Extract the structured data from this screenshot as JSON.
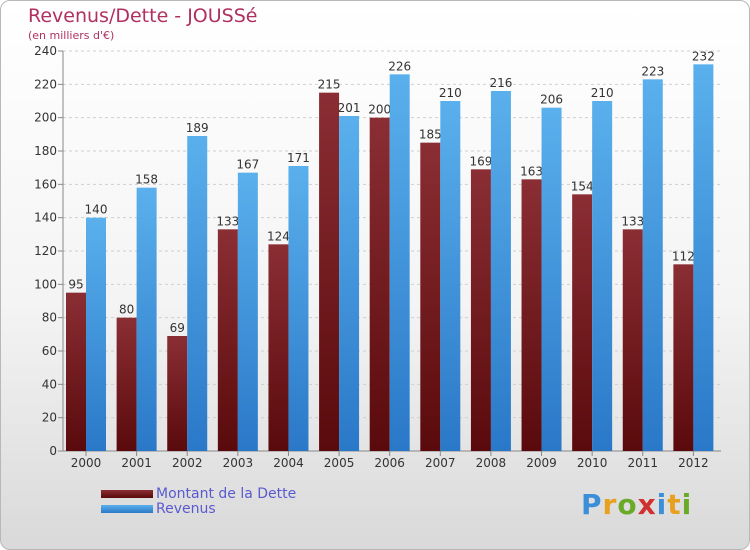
{
  "title": "Revenus/Dette - JOUSSé",
  "subtitle": "(en milliers d'€)",
  "legend": {
    "debt_label": "Montant de la Dette",
    "revenue_label": "Revenus"
  },
  "logo": {
    "letters": [
      "P",
      "r",
      "o",
      "x",
      "i",
      "t",
      "i"
    ],
    "colors": [
      "#3a8fd8",
      "#e8a020",
      "#6aaa28",
      "#d03030",
      "#3a8fd8",
      "#e8a020",
      "#6aaa28"
    ]
  },
  "colors": {
    "debt_top": "#8a2e34",
    "debt_bottom": "#5a0a0c",
    "revenue_top": "#5ab0ec",
    "revenue_bottom": "#2a78c8",
    "grid": "#cfcfcf",
    "axis_text": "#333333"
  },
  "chart_data": {
    "type": "bar",
    "categories": [
      "2000",
      "2001",
      "2002",
      "2003",
      "2004",
      "2005",
      "2006",
      "2007",
      "2008",
      "2009",
      "2010",
      "2011",
      "2012"
    ],
    "series": [
      {
        "name": "Montant de la Dette",
        "values": [
          95,
          80,
          69,
          133,
          124,
          215,
          200,
          185,
          169,
          163,
          154,
          133,
          112
        ]
      },
      {
        "name": "Revenus",
        "values": [
          140,
          158,
          189,
          167,
          171,
          201,
          226,
          210,
          216,
          206,
          210,
          223,
          232
        ]
      }
    ],
    "ylim": [
      0,
      240
    ],
    "yticks": [
      0,
      20,
      40,
      60,
      80,
      100,
      120,
      140,
      160,
      180,
      200,
      220,
      240
    ],
    "grid": true,
    "legend_position": "bottom-left"
  }
}
